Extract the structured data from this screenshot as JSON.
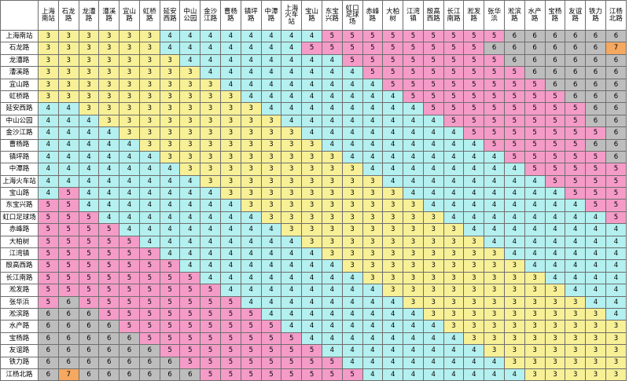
{
  "colors": {
    "3": "#f7f096",
    "4": "#b3f0ef",
    "5": "#f59bc8",
    "6": "#bdbdbd",
    "7": "#f5a860"
  },
  "table": {
    "columns": [
      [
        "上海",
        "南站"
      ],
      [
        "石龙",
        "路"
      ],
      [
        "龙漕",
        "路"
      ],
      [
        "漕溪",
        "路"
      ],
      [
        "宜山",
        "路"
      ],
      [
        "虹桥",
        "路"
      ],
      [
        "延安",
        "西路"
      ],
      [
        "中山",
        "公园"
      ],
      [
        "金沙",
        "江路"
      ],
      [
        "曹杨",
        "路"
      ],
      [
        "镇坪",
        "路"
      ],
      [
        "中潭",
        "路"
      ],
      [
        "上海",
        "火车",
        "站"
      ],
      [
        "宝山",
        "路"
      ],
      [
        "东宝",
        "兴路"
      ],
      [
        "虹口",
        "足球",
        "场"
      ],
      [
        "赤峰",
        "路"
      ],
      [
        "大柏",
        "树"
      ],
      [
        "江湾",
        "镇"
      ],
      [
        "殷高",
        "西路"
      ],
      [
        "长江",
        "南路"
      ],
      [
        "淞发",
        "路"
      ],
      [
        "张华",
        "浜"
      ],
      [
        "淞滨",
        "路"
      ],
      [
        "水产",
        "路"
      ],
      [
        "宝杨",
        "路"
      ],
      [
        "友谊",
        "路"
      ],
      [
        "铁力",
        "路"
      ],
      [
        "江杨",
        "北路"
      ]
    ],
    "rows": [
      {
        "station": "上海南站",
        "fares": [
          3,
          3,
          3,
          3,
          3,
          3,
          4,
          4,
          4,
          4,
          4,
          4,
          4,
          4,
          5,
          5,
          5,
          5,
          5,
          5,
          5,
          5,
          5,
          6,
          6,
          6,
          6,
          6,
          6
        ]
      },
      {
        "station": "石龙路",
        "fares": [
          3,
          3,
          3,
          3,
          3,
          3,
          4,
          4,
          4,
          4,
          4,
          4,
          4,
          5,
          5,
          5,
          5,
          5,
          5,
          5,
          5,
          5,
          6,
          6,
          6,
          6,
          6,
          6,
          7
        ]
      },
      {
        "station": "龙漕路",
        "fares": [
          3,
          3,
          3,
          3,
          3,
          3,
          3,
          4,
          4,
          4,
          4,
          4,
          4,
          4,
          4,
          5,
          5,
          5,
          5,
          5,
          5,
          5,
          5,
          6,
          6,
          6,
          6,
          6,
          6
        ]
      },
      {
        "station": "漕溪路",
        "fares": [
          3,
          3,
          3,
          3,
          3,
          3,
          3,
          3,
          4,
          4,
          4,
          4,
          4,
          4,
          4,
          4,
          5,
          5,
          5,
          5,
          5,
          5,
          5,
          5,
          6,
          6,
          6,
          6,
          6
        ]
      },
      {
        "station": "宜山路",
        "fares": [
          3,
          3,
          3,
          3,
          3,
          3,
          3,
          3,
          3,
          4,
          4,
          4,
          4,
          4,
          4,
          4,
          4,
          5,
          5,
          5,
          5,
          5,
          5,
          5,
          5,
          6,
          6,
          6,
          6
        ]
      },
      {
        "station": "虹桥路",
        "fares": [
          3,
          3,
          3,
          3,
          3,
          3,
          3,
          3,
          3,
          3,
          4,
          4,
          4,
          4,
          4,
          4,
          4,
          4,
          5,
          5,
          5,
          5,
          5,
          5,
          5,
          5,
          6,
          6,
          6
        ]
      },
      {
        "station": "延安西路",
        "fares": [
          4,
          4,
          3,
          3,
          3,
          3,
          3,
          3,
          3,
          3,
          3,
          4,
          4,
          4,
          4,
          4,
          4,
          4,
          4,
          5,
          5,
          5,
          5,
          5,
          5,
          5,
          5,
          6,
          6
        ]
      },
      {
        "station": "中山公园",
        "fares": [
          4,
          4,
          4,
          3,
          3,
          3,
          3,
          3,
          3,
          3,
          3,
          3,
          4,
          4,
          4,
          4,
          4,
          4,
          4,
          4,
          5,
          5,
          5,
          5,
          5,
          5,
          5,
          6,
          6
        ]
      },
      {
        "station": "金沙江路",
        "fares": [
          4,
          4,
          4,
          4,
          3,
          3,
          3,
          3,
          3,
          3,
          3,
          3,
          3,
          4,
          4,
          4,
          4,
          4,
          4,
          4,
          4,
          5,
          5,
          5,
          5,
          5,
          5,
          5,
          6
        ]
      },
      {
        "station": "曹杨路",
        "fares": [
          4,
          4,
          4,
          4,
          4,
          3,
          3,
          3,
          3,
          3,
          3,
          3,
          3,
          3,
          4,
          4,
          4,
          4,
          4,
          4,
          4,
          4,
          5,
          5,
          5,
          5,
          5,
          6,
          6
        ]
      },
      {
        "station": "镇坪路",
        "fares": [
          4,
          4,
          4,
          4,
          4,
          4,
          3,
          3,
          3,
          3,
          3,
          3,
          3,
          3,
          3,
          4,
          4,
          4,
          4,
          4,
          4,
          4,
          4,
          5,
          5,
          5,
          5,
          5,
          6
        ]
      },
      {
        "station": "中潭路",
        "fares": [
          4,
          4,
          4,
          4,
          4,
          4,
          4,
          3,
          3,
          3,
          3,
          3,
          3,
          3,
          3,
          3,
          4,
          4,
          4,
          4,
          4,
          4,
          4,
          4,
          5,
          5,
          5,
          5,
          5
        ]
      },
      {
        "station": "上海火车站",
        "fares": [
          4,
          4,
          4,
          4,
          4,
          4,
          4,
          4,
          3,
          3,
          3,
          3,
          3,
          3,
          3,
          3,
          3,
          4,
          4,
          4,
          4,
          4,
          4,
          4,
          4,
          5,
          5,
          5,
          5
        ]
      },
      {
        "station": "宝山路",
        "fares": [
          4,
          5,
          4,
          4,
          4,
          4,
          4,
          4,
          4,
          3,
          3,
          3,
          3,
          3,
          3,
          3,
          3,
          3,
          4,
          4,
          4,
          4,
          4,
          4,
          4,
          4,
          5,
          5,
          5
        ]
      },
      {
        "station": "东宝兴路",
        "fares": [
          5,
          5,
          4,
          4,
          4,
          4,
          4,
          4,
          4,
          4,
          3,
          3,
          3,
          3,
          3,
          3,
          3,
          3,
          3,
          4,
          4,
          4,
          4,
          4,
          4,
          4,
          4,
          5,
          5
        ]
      },
      {
        "station": "虹口足球场",
        "fares": [
          5,
          5,
          5,
          4,
          4,
          4,
          4,
          4,
          4,
          4,
          4,
          3,
          3,
          3,
          3,
          3,
          3,
          3,
          3,
          3,
          4,
          4,
          4,
          4,
          4,
          4,
          4,
          4,
          5
        ]
      },
      {
        "station": "赤峰路",
        "fares": [
          5,
          5,
          5,
          5,
          4,
          4,
          4,
          4,
          4,
          4,
          4,
          4,
          3,
          3,
          3,
          3,
          3,
          3,
          3,
          3,
          3,
          4,
          4,
          4,
          4,
          4,
          4,
          4,
          4
        ]
      },
      {
        "station": "大柏树",
        "fares": [
          5,
          5,
          5,
          5,
          5,
          4,
          4,
          4,
          4,
          4,
          4,
          4,
          4,
          3,
          3,
          3,
          3,
          3,
          3,
          3,
          3,
          3,
          4,
          4,
          4,
          4,
          4,
          4,
          4
        ]
      },
      {
        "station": "江湾镇",
        "fares": [
          5,
          5,
          5,
          5,
          5,
          5,
          4,
          4,
          4,
          4,
          4,
          4,
          4,
          4,
          3,
          3,
          3,
          3,
          3,
          3,
          3,
          3,
          3,
          4,
          4,
          4,
          4,
          4,
          4
        ]
      },
      {
        "station": "殷高西路",
        "fares": [
          5,
          5,
          5,
          5,
          5,
          5,
          5,
          4,
          4,
          4,
          4,
          4,
          4,
          4,
          4,
          3,
          3,
          3,
          3,
          3,
          3,
          3,
          3,
          3,
          4,
          4,
          4,
          4,
          4
        ]
      },
      {
        "station": "长江南路",
        "fares": [
          5,
          5,
          5,
          5,
          5,
          5,
          5,
          5,
          4,
          4,
          4,
          4,
          4,
          4,
          4,
          4,
          3,
          3,
          3,
          3,
          3,
          3,
          3,
          3,
          3,
          4,
          4,
          4,
          4
        ]
      },
      {
        "station": "淞发路",
        "fares": [
          5,
          5,
          5,
          5,
          5,
          5,
          5,
          5,
          5,
          4,
          4,
          4,
          4,
          4,
          4,
          4,
          4,
          3,
          3,
          3,
          3,
          3,
          3,
          3,
          3,
          3,
          4,
          4,
          4
        ]
      },
      {
        "station": "张华浜",
        "fares": [
          5,
          6,
          5,
          5,
          5,
          5,
          5,
          5,
          5,
          5,
          4,
          4,
          4,
          4,
          4,
          4,
          4,
          4,
          3,
          3,
          3,
          3,
          3,
          3,
          3,
          3,
          3,
          4,
          4
        ]
      },
      {
        "station": "淞滨路",
        "fares": [
          6,
          6,
          6,
          5,
          5,
          5,
          5,
          5,
          5,
          5,
          5,
          4,
          4,
          4,
          4,
          4,
          4,
          4,
          4,
          3,
          3,
          3,
          3,
          3,
          3,
          3,
          3,
          3,
          4
        ]
      },
      {
        "station": "水产路",
        "fares": [
          6,
          6,
          6,
          6,
          5,
          5,
          5,
          5,
          5,
          5,
          5,
          5,
          4,
          4,
          4,
          4,
          4,
          4,
          4,
          4,
          3,
          3,
          3,
          3,
          3,
          3,
          3,
          3,
          3
        ]
      },
      {
        "station": "宝杨路",
        "fares": [
          6,
          6,
          6,
          6,
          6,
          5,
          5,
          5,
          5,
          5,
          5,
          5,
          5,
          4,
          4,
          4,
          4,
          4,
          4,
          4,
          4,
          3,
          3,
          3,
          3,
          3,
          3,
          3,
          3
        ]
      },
      {
        "station": "友谊路",
        "fares": [
          6,
          6,
          6,
          6,
          6,
          6,
          5,
          5,
          5,
          5,
          5,
          5,
          5,
          5,
          4,
          4,
          4,
          4,
          4,
          4,
          4,
          4,
          3,
          3,
          3,
          3,
          3,
          3,
          3
        ]
      },
      {
        "station": "铁力路",
        "fares": [
          6,
          6,
          6,
          6,
          6,
          6,
          6,
          5,
          5,
          5,
          5,
          5,
          5,
          5,
          5,
          4,
          4,
          4,
          4,
          4,
          4,
          4,
          4,
          3,
          3,
          3,
          3,
          3,
          3
        ]
      },
      {
        "station": "江杨北路",
        "fares": [
          6,
          7,
          6,
          6,
          6,
          6,
          6,
          6,
          5,
          5,
          5,
          5,
          5,
          5,
          5,
          5,
          4,
          4,
          4,
          4,
          4,
          4,
          4,
          4,
          3,
          3,
          3,
          3,
          3
        ]
      }
    ]
  }
}
